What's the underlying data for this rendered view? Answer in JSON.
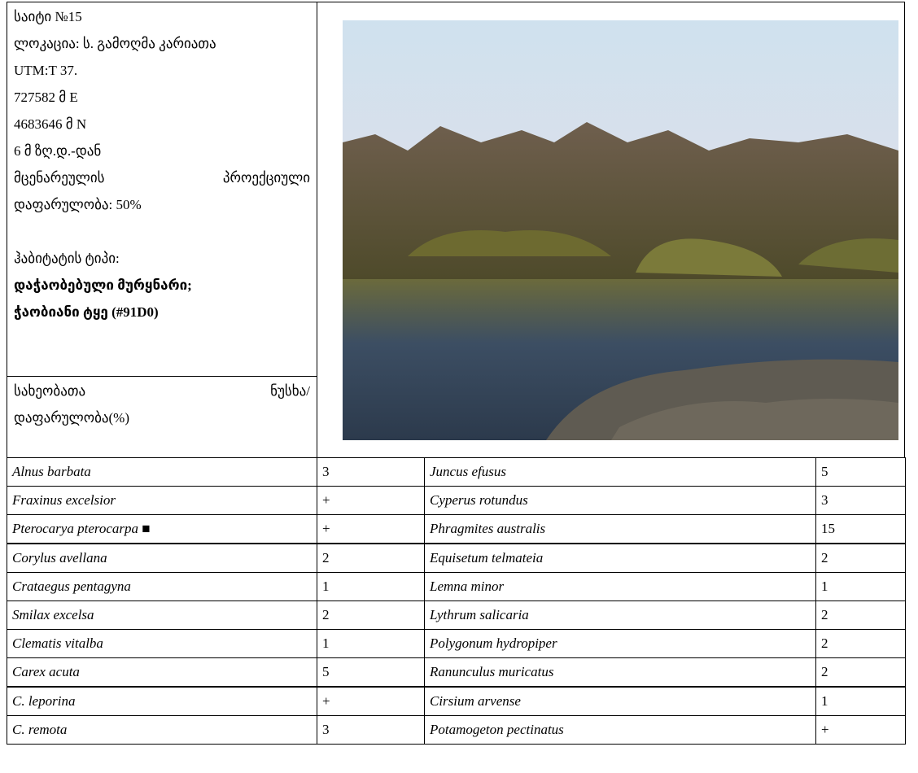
{
  "site": {
    "lines": [
      "საიტი №15",
      "ლოკაცია: ს. გამოღმა კარიათა",
      "UTM:T 37.",
      "727582 მ E",
      "4683646 მ N",
      "6 მ ზღ.დ.-დან",
      "მცენარეულის პროექციული",
      "დაფარულობა: 50%"
    ],
    "habitat_label": "ჰაბიტატის ტიპი:",
    "habitat_lines": [
      "დაჭაობებული მურყნარი;",
      "ჭაობიანი ტყე (#91D0)"
    ],
    "species_header": [
      "სახეობათა ნუსხა/",
      "დაფარულობა(%)"
    ]
  },
  "table": {
    "rows": [
      [
        "Alnus barbata",
        3,
        "Juncus efusus",
        5
      ],
      [
        "Fraxinus excelsior",
        "+",
        "Cyperus rotundus",
        3
      ],
      [
        "Pterocarya pterocarpa ■",
        "+",
        "Phragmites australis",
        15
      ],
      [
        "Corylus avellana",
        2,
        "Equisetum telmateia",
        2
      ],
      [
        "Crataegus pentagyna",
        1,
        "Lemna minor",
        1
      ],
      [
        "Smilax excelsa",
        2,
        "Lythrum salicaria",
        2
      ],
      [
        "Clematis vitalba",
        1,
        "Polygonum hydropiper",
        2
      ],
      [
        "Carex acuta",
        5,
        "Ranunculus muricatus",
        2
      ],
      [
        "C. leporina",
        "+",
        "Cirsium arvense",
        1
      ],
      [
        "C. remota",
        3,
        "Potamogeton pectinatus",
        "+"
      ]
    ]
  }
}
